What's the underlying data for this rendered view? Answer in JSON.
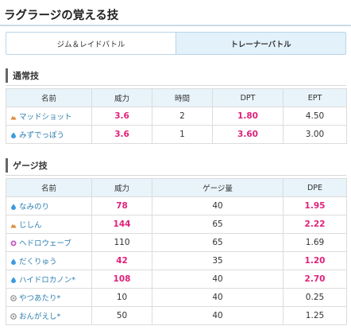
{
  "title": "ラグラージの覚える技",
  "tabs": [
    {
      "label": "ジム＆レイドバトル",
      "active": false
    },
    {
      "label": "トレーナーバトル",
      "active": true
    }
  ],
  "fast_moves": {
    "heading": "通常技",
    "columns": [
      "名前",
      "威力",
      "時間",
      "DPT",
      "EPT"
    ],
    "rows": [
      {
        "icon": "ground-type-icon",
        "name": "マッドショット",
        "power": "3.6",
        "time": "2",
        "dpt": "1.80",
        "ept": "4.50",
        "hl": [
          true,
          false,
          true,
          false
        ]
      },
      {
        "icon": "water-type-icon",
        "name": "みずでっぽう",
        "power": "3.6",
        "time": "1",
        "dpt": "3.60",
        "ept": "3.00",
        "hl": [
          true,
          false,
          true,
          false
        ]
      }
    ]
  },
  "charged_moves": {
    "heading": "ゲージ技",
    "columns": [
      "名前",
      "威力",
      "ゲージ量",
      "DPE"
    ],
    "rows": [
      {
        "icon": "water-type-icon",
        "name": "なみのり",
        "power": "78",
        "energy": "40",
        "dpe": "1.95",
        "hl": [
          true,
          false,
          true
        ]
      },
      {
        "icon": "ground-type-icon",
        "name": "じしん",
        "power": "144",
        "energy": "65",
        "dpe": "2.22",
        "hl": [
          true,
          false,
          true
        ]
      },
      {
        "icon": "poison-type-icon",
        "name": "ヘドロウェーブ",
        "power": "110",
        "energy": "65",
        "dpe": "1.69",
        "hl": [
          false,
          false,
          false
        ]
      },
      {
        "icon": "water-type-icon",
        "name": "だくりゅう",
        "power": "42",
        "energy": "35",
        "dpe": "1.20",
        "hl": [
          true,
          false,
          true
        ]
      },
      {
        "icon": "water-type-icon",
        "name": "ハイドロカノン*",
        "power": "108",
        "energy": "40",
        "dpe": "2.70",
        "hl": [
          true,
          false,
          true
        ]
      },
      {
        "icon": "normal-type-icon",
        "name": "やつあたり*",
        "power": "10",
        "energy": "40",
        "dpe": "0.25",
        "hl": [
          false,
          false,
          false
        ]
      },
      {
        "icon": "normal-type-icon",
        "name": "おんがえし*",
        "power": "50",
        "energy": "40",
        "dpe": "1.25",
        "hl": [
          false,
          false,
          false
        ]
      }
    ]
  },
  "colors": {
    "highlight": "#e0217a",
    "link": "#2f7fb0",
    "header_bg": "#e8f3fa",
    "water": "#3d9be0",
    "ground": "#e08a3a",
    "poison": "#c45ec0",
    "normal": "#9a9a9a"
  }
}
